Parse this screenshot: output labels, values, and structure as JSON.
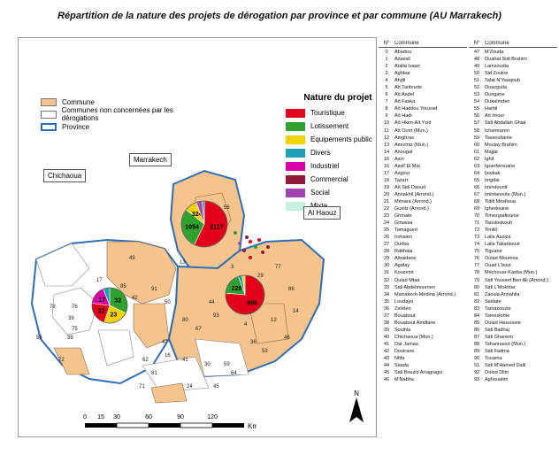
{
  "title": "Répartition de la nature des projets de dérogation par province et par  commune (AU Marrakech)",
  "legend_left": [
    {
      "label": "Commune",
      "color": "#f4c48c"
    },
    {
      "label": "Communes non concernées par les dérogations",
      "color": "#ffffff"
    },
    {
      "label": "Province",
      "color": "#2f6db5"
    }
  ],
  "legend_right": {
    "title": "Nature du projet",
    "items": [
      {
        "label": "Touristique",
        "color": "#e3001b"
      },
      {
        "label": "Lotissement",
        "color": "#2fa12f"
      },
      {
        "label": "Equipements public",
        "color": "#f2d300"
      },
      {
        "label": "Divers",
        "color": "#1fa0b8"
      },
      {
        "label": "Industriel",
        "color": "#d800a8"
      },
      {
        "label": "Commercial",
        "color": "#8e1b3a"
      },
      {
        "label": "Social",
        "color": "#a044b0"
      },
      {
        "label": "Mixte",
        "color": "#c8f0e2"
      }
    ]
  },
  "callouts": {
    "chichaoua": "Chichaoua",
    "marrakech": "Marrakech",
    "alhaouz": "Al Haouz"
  },
  "pies": [
    {
      "name": "Chichaoua",
      "segments": [
        {
          "value": 32,
          "color": "#2fa12f",
          "label": "32"
        },
        {
          "value": 23,
          "color": "#f2d300",
          "label": "23"
        },
        {
          "value": 22,
          "color": "#e3001b",
          "label": "22"
        },
        {
          "value": 17,
          "color": "#d800a8",
          "label": "17"
        },
        {
          "value": 6,
          "color": "#1fa0b8",
          "label": ""
        }
      ]
    },
    {
      "name": "Marrakech",
      "segments": [
        {
          "value": 2117,
          "color": "#e3001b",
          "label": "2117"
        },
        {
          "value": 1054,
          "color": "#2fa12f",
          "label": "1054"
        },
        {
          "value": 324,
          "color": "#f2d300",
          "label": "324"
        },
        {
          "value": 150,
          "color": "#a044b0",
          "label": ""
        },
        {
          "value": 60,
          "color": "#1fa0b8",
          "label": ""
        }
      ]
    },
    {
      "name": "Al Haouz",
      "segments": [
        {
          "value": 965,
          "color": "#e3001b",
          "label": "965"
        },
        {
          "value": 228,
          "color": "#2fa12f",
          "label": "228"
        },
        {
          "value": 40,
          "color": "#1fa0b8",
          "label": ""
        },
        {
          "value": 30,
          "color": "#f2d300",
          "label": ""
        }
      ]
    }
  ],
  "map_numbers": [
    "49",
    "76",
    "17",
    "85",
    "42",
    "91",
    "78",
    "39",
    "38",
    "58",
    "31",
    "75",
    "72",
    "62",
    "71",
    "81",
    "47",
    "16",
    "80",
    "41",
    "50",
    "24",
    "30",
    "45",
    "55",
    "56",
    "82",
    "59",
    "53",
    "46",
    "64",
    "4",
    "12",
    "14",
    "7",
    "29",
    "77",
    "86",
    "93",
    "67",
    "36",
    "13",
    "44",
    "3"
  ],
  "scale": {
    "ticks": [
      "0",
      "15",
      "30",
      "60",
      "90",
      "120"
    ],
    "unit": "Km"
  },
  "north": "N",
  "list": {
    "header_num": "N°",
    "header_name": "Commune",
    "col1": [
      [
        "0",
        "Abadou"
      ],
      [
        "1",
        "Adassil"
      ],
      [
        "2",
        "Aïalla Isaan"
      ],
      [
        "3",
        "Aghbar"
      ],
      [
        "4",
        "Ahdil"
      ],
      [
        "5",
        "Aït Taritourte"
      ],
      [
        "6",
        "Aït Aadel"
      ],
      [
        "7",
        "Aït Faska"
      ],
      [
        "8",
        "Aït Haddou Youssef"
      ],
      [
        "9",
        "Aït Hadi"
      ],
      [
        "10",
        "Aït Hkim-Aït Yzid"
      ],
      [
        "11",
        "Aït Ourir (Mun.)"
      ],
      [
        "12",
        "Amghras"
      ],
      [
        "13",
        "Amizmiz (Mun.)"
      ],
      [
        "14",
        "Anougal"
      ],
      [
        "15",
        "Asni"
      ],
      [
        "16",
        "Assif El Mal"
      ],
      [
        "17",
        "Azgour"
      ],
      [
        "18",
        "Tazart"
      ],
      [
        "19",
        "Aït Sidi Daoud"
      ],
      [
        "20",
        "Annakhil (Arrond.)"
      ],
      [
        "21",
        "Ménara (Arrond.)"
      ],
      [
        "22",
        "Gueliz (Arrond.)"
      ],
      [
        "23",
        "Ghmate"
      ],
      [
        "24",
        "Gmassa"
      ],
      [
        "25",
        "Tamaguert"
      ],
      [
        "26",
        "Irohalen"
      ],
      [
        "27",
        "Ourika"
      ],
      [
        "28",
        "Rahhala"
      ],
      [
        "29",
        "Aloaidane"
      ],
      [
        "30",
        "Agafay"
      ],
      [
        "31",
        "Kouzemt"
      ],
      [
        "32",
        "Oulad Mtaa"
      ],
      [
        "33",
        "Sidi Abdelmoumen"
      ],
      [
        "34",
        "Marrakech-Médina (Arrond.)"
      ],
      [
        "35",
        "Loudaya"
      ],
      [
        "36",
        "Zerkten"
      ],
      [
        "37",
        "Bouabout"
      ],
      [
        "38",
        "Bouabout Amdlane"
      ],
      [
        "39",
        "Souihla"
      ],
      [
        "40",
        "Chichaoua (Mun.)"
      ],
      [
        "41",
        "Dar Jamaa"
      ],
      [
        "42",
        "Douirane"
      ],
      [
        "43",
        "Nfifa"
      ],
      [
        "44",
        "Saada"
      ],
      [
        "45",
        "Sidi Bouzid Arragragui"
      ],
      [
        "46",
        "M'Nabha"
      ]
    ],
    "col2": [
      [
        "47",
        "M'Zouda"
      ],
      [
        "48",
        "Ouahat Sidi Brahim"
      ],
      [
        "49",
        "Lamzoudia"
      ],
      [
        "50",
        "Sid Zouine"
      ],
      [
        "51",
        "Tafat N'Yaaqoub"
      ],
      [
        "52",
        "Ouazguita"
      ],
      [
        "53",
        "Ouirgane"
      ],
      [
        "54",
        "Oukaïmden"
      ],
      [
        "55",
        "Harbil"
      ],
      [
        "56",
        "Aït Imour"
      ],
      [
        "57",
        "Sidi Abdallah Ghiat"
      ],
      [
        "58",
        "Ichamraren"
      ],
      [
        "59",
        "Tassoultante"
      ],
      [
        "60",
        "Moulay Brahim"
      ],
      [
        "61",
        "Majjat"
      ],
      [
        "62",
        "Ighil"
      ],
      [
        "63",
        "Iguerferouane"
      ],
      [
        "64",
        "Ijoukak"
      ],
      [
        "65",
        "Imgdal"
      ],
      [
        "66",
        "Imindounit"
      ],
      [
        "67",
        "Imintanoute (Mun.)"
      ],
      [
        "68",
        "Tidili Mesfioua"
      ],
      [
        "69",
        "Ighedouine"
      ],
      [
        "70",
        "Timezgadiouine"
      ],
      [
        "71",
        "Taouloukoult"
      ],
      [
        "72",
        "Timlilt"
      ],
      [
        "73",
        "Lalla Aaziza"
      ],
      [
        "74",
        "Lalla Takarkoust"
      ],
      [
        "75",
        "Tiguane"
      ],
      [
        "76",
        "Oulad Moumna"
      ],
      [
        "77",
        "Ouad L'bour"
      ],
      [
        "78",
        "Méchouar-Kasba (Mun.)"
      ],
      [
        "79",
        "Sidi Youssef Ben Ali (Arrond.)"
      ],
      [
        "80",
        "Sidi L'Mokhtar"
      ],
      [
        "81",
        "Zaouia Annahlia"
      ],
      [
        "82",
        "Saidate"
      ],
      [
        "83",
        "Tamazouzte"
      ],
      [
        "84",
        "Tameslohte"
      ],
      [
        "85",
        "Oulad Hassoune"
      ],
      [
        "86",
        "Sidi Badhaj"
      ],
      [
        "87",
        "Sidi Ghanem"
      ],
      [
        "88",
        "Tahannaout (Mun.)"
      ],
      [
        "89",
        "Sidi Fadma"
      ],
      [
        "90",
        "Touama"
      ],
      [
        "91",
        "Sidi M'Hamed Dalil"
      ],
      [
        "92",
        "Ouled Dlim"
      ],
      [
        "93",
        "Aghouatim"
      ]
    ]
  }
}
